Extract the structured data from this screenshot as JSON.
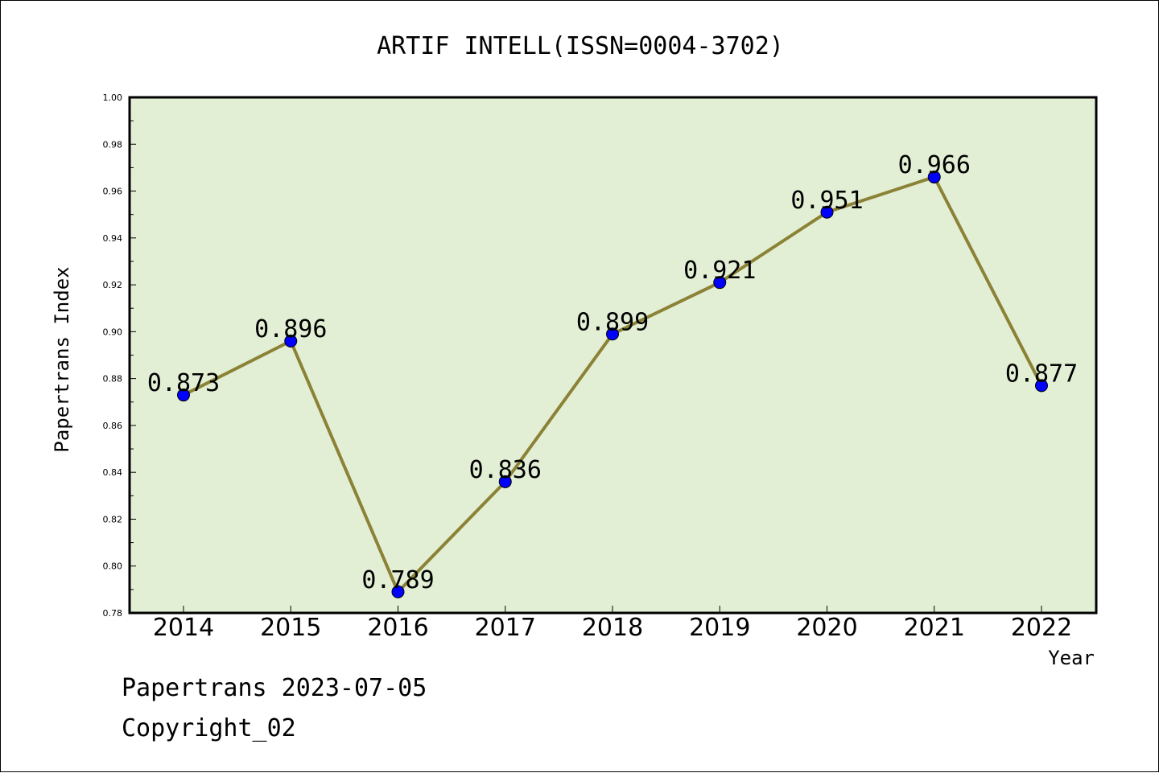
{
  "chart_data": {
    "type": "line",
    "title": "ARTIF INTELL(ISSN=0004-3702)",
    "xlabel": "Year",
    "ylabel": "Papertrans Index",
    "categories": [
      "2014",
      "2015",
      "2016",
      "2017",
      "2018",
      "2019",
      "2020",
      "2021",
      "2022"
    ],
    "values": [
      0.873,
      0.896,
      0.789,
      0.836,
      0.899,
      0.921,
      0.951,
      0.966,
      0.877
    ],
    "data_labels": [
      "0.873",
      "0.896",
      "0.789",
      "0.836",
      "0.899",
      "0.921",
      "0.951",
      "0.966",
      "0.877"
    ],
    "ylim": [
      0.78,
      1.0
    ],
    "yticks": [
      "0.78",
      "0.80",
      "0.82",
      "0.84",
      "0.86",
      "0.88",
      "0.90",
      "0.92",
      "0.94",
      "0.96",
      "0.98",
      "1.00"
    ],
    "grid": false,
    "legend": "none",
    "colors": {
      "plot_background": "#e2efd5",
      "line": "#8b8236",
      "marker": "#0000ff"
    }
  },
  "footer": {
    "date_line": "Papertrans 2023-07-05",
    "copyright_line": "Copyright_02"
  }
}
